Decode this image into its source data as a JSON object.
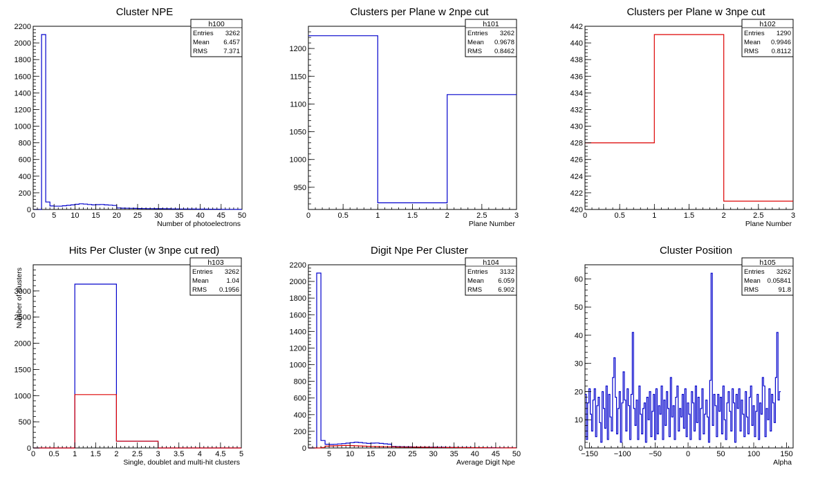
{
  "chart_data": [
    {
      "id": "h100",
      "type": "bar",
      "title": "Cluster NPE",
      "xlabel": "Number of photoelectrons",
      "ylabel": "",
      "xlim": [
        0,
        50
      ],
      "ylim": [
        0,
        2200
      ],
      "xticks": [
        0,
        5,
        10,
        15,
        20,
        25,
        30,
        35,
        40,
        45,
        50
      ],
      "xtick_labels": [
        "0",
        "5",
        "10",
        "15",
        "20",
        "25",
        "30",
        "35",
        "40",
        "45",
        "50"
      ],
      "yticks": [
        0,
        200,
        400,
        600,
        800,
        1000,
        1200,
        1400,
        1600,
        1800,
        2000,
        2200
      ],
      "ytick_labels": [
        "0",
        "200",
        "400",
        "600",
        "800",
        "1000",
        "1200",
        "1400",
        "1600",
        "1800",
        "2000",
        "2200"
      ],
      "stats": {
        "name": "h100",
        "Entries": "3262",
        "Mean": "6.457",
        "RMS": "7.371"
      },
      "series": [
        {
          "color": "#0000cc",
          "bin_edges_start": 0,
          "bin_width": 1,
          "values": [
            0,
            0,
            2100,
            90,
            42,
            40,
            40,
            45,
            50,
            55,
            62,
            68,
            65,
            60,
            55,
            58,
            60,
            55,
            52,
            48,
            18,
            16,
            15,
            14,
            13,
            12,
            11,
            10,
            10,
            9,
            9,
            8,
            8,
            7,
            7,
            6,
            6,
            5,
            5,
            4,
            4,
            4,
            3,
            3,
            3,
            2,
            2,
            2,
            1,
            1
          ]
        }
      ]
    },
    {
      "id": "h101",
      "type": "bar",
      "title": "Clusters per Plane w 2npe cut",
      "xlabel": "Plane Number",
      "ylabel": "",
      "xlim": [
        0,
        3
      ],
      "ylim": [
        910,
        1240
      ],
      "xticks": [
        0,
        0.5,
        1,
        1.5,
        2,
        2.5,
        3
      ],
      "xtick_labels": [
        "0",
        "0.5",
        "1",
        "1.5",
        "2",
        "2.5",
        "3"
      ],
      "yticks": [
        950,
        1000,
        1050,
        1100,
        1150,
        1200
      ],
      "ytick_labels": [
        "950",
        "1000",
        "1050",
        "1100",
        "1150",
        "1200"
      ],
      "stats": {
        "name": "h101",
        "Entries": "3262",
        "Mean": "0.9678",
        "RMS": "0.8462"
      },
      "series": [
        {
          "color": "#0000cc",
          "bin_edges_start": 0,
          "bin_width": 1,
          "values": [
            1223,
            922,
            1117
          ]
        }
      ]
    },
    {
      "id": "h102",
      "type": "bar",
      "title": "Clusters per Plane w 3npe cut",
      "xlabel": "Plane Number",
      "ylabel": "",
      "xlim": [
        0,
        3
      ],
      "ylim": [
        420,
        442
      ],
      "xticks": [
        0,
        0.5,
        1,
        1.5,
        2,
        2.5,
        3
      ],
      "xtick_labels": [
        "0",
        "0.5",
        "1",
        "1.5",
        "2",
        "2.5",
        "3"
      ],
      "yticks": [
        420,
        422,
        424,
        426,
        428,
        430,
        432,
        434,
        436,
        438,
        440,
        442
      ],
      "ytick_labels": [
        "420",
        "422",
        "424",
        "426",
        "428",
        "430",
        "432",
        "434",
        "436",
        "438",
        "440",
        "442"
      ],
      "stats": {
        "name": "h102",
        "Entries": "1290",
        "Mean": "0.9946",
        "RMS": "0.8112"
      },
      "series": [
        {
          "color": "#dd0000",
          "bin_edges_start": 0,
          "bin_width": 1,
          "values": [
            428,
            441,
            421
          ]
        }
      ]
    },
    {
      "id": "h103",
      "type": "bar",
      "title": "Hits Per Cluster (w 3npe cut red)",
      "xlabel": "Single, doublet and multi-hit clusters",
      "ylabel": "Number of clusters",
      "xlim": [
        0,
        5
      ],
      "ylim": [
        0,
        3500
      ],
      "xticks": [
        0,
        0.5,
        1,
        1.5,
        2,
        2.5,
        3,
        3.5,
        4,
        4.5,
        5
      ],
      "xtick_labels": [
        "0",
        "0.5",
        "1",
        "1.5",
        "2",
        "2.5",
        "3",
        "3.5",
        "4",
        "4.5",
        "5"
      ],
      "yticks": [
        0,
        500,
        1000,
        1500,
        2000,
        2500,
        3000
      ],
      "ytick_labels": [
        "0",
        "500",
        "1000",
        "1500",
        "2000",
        "2500",
        "3000"
      ],
      "stats": {
        "name": "h103",
        "Entries": "3262",
        "Mean": "1.04",
        "RMS": "0.1956"
      },
      "series": [
        {
          "color": "#0000cc",
          "bin_edges_start": 0,
          "bin_width": 1,
          "values": [
            0,
            3130,
            130,
            0,
            0
          ]
        },
        {
          "color": "#dd0000",
          "bin_edges_start": 0,
          "bin_width": 1,
          "values": [
            0,
            1020,
            130,
            0,
            0
          ]
        }
      ]
    },
    {
      "id": "h104",
      "type": "bar",
      "title": "Digit Npe Per Cluster",
      "xlabel": "Average Digit Npe",
      "ylabel": "",
      "xlim": [
        0,
        50
      ],
      "ylim": [
        0,
        2200
      ],
      "xticks": [
        5,
        10,
        15,
        20,
        25,
        30,
        35,
        40,
        45,
        50
      ],
      "xtick_labels": [
        "5",
        "10",
        "15",
        "20",
        "25",
        "30",
        "35",
        "40",
        "45",
        "50"
      ],
      "yticks": [
        0,
        200,
        400,
        600,
        800,
        1000,
        1200,
        1400,
        1600,
        1800,
        2000,
        2200
      ],
      "ytick_labels": [
        "0",
        "200",
        "400",
        "600",
        "800",
        "1000",
        "1200",
        "1400",
        "1600",
        "1800",
        "2000",
        "2200"
      ],
      "stats": {
        "name": "h104",
        "Entries": "3132",
        "Mean": "6.059",
        "RMS": "6.902"
      },
      "series": [
        {
          "color": "#0000cc",
          "bin_edges_start": 0,
          "bin_width": 1,
          "values": [
            0,
            0,
            2100,
            90,
            45,
            42,
            44,
            48,
            52,
            58,
            64,
            70,
            66,
            60,
            55,
            58,
            60,
            55,
            50,
            46,
            18,
            16,
            15,
            14,
            13,
            12,
            11,
            10,
            10,
            9,
            9,
            8,
            8,
            7,
            7,
            6,
            6,
            5,
            5,
            4,
            4,
            4,
            3,
            3,
            3,
            2,
            2,
            2,
            1,
            1
          ]
        },
        {
          "color": "#dd0000",
          "bin_edges_start": 0,
          "bin_width": 1,
          "values": [
            0,
            0,
            0,
            5,
            22,
            24,
            26,
            28,
            30,
            30,
            28,
            26,
            24,
            22,
            20,
            18,
            17,
            16,
            15,
            14,
            13,
            12,
            11,
            10,
            10,
            9,
            9,
            8,
            8,
            7,
            7,
            6,
            6,
            5,
            5,
            5,
            4,
            4,
            4,
            3,
            3,
            3,
            3,
            2,
            2,
            2,
            2,
            1,
            1,
            1
          ]
        }
      ]
    },
    {
      "id": "h105",
      "type": "bar",
      "title": "Cluster Position",
      "xlabel": "Alpha",
      "ylabel": "",
      "xlim": [
        -157,
        160
      ],
      "ylim": [
        0,
        65
      ],
      "xticks": [
        -150,
        -100,
        -50,
        0,
        50,
        100,
        150
      ],
      "xtick_labels": [
        "−150",
        "−100",
        "−50",
        "0",
        "50",
        "100",
        "150"
      ],
      "yticks": [
        0,
        10,
        20,
        30,
        40,
        50,
        60
      ],
      "ytick_labels": [
        "0",
        "10",
        "20",
        "30",
        "40",
        "50",
        "60"
      ],
      "stats": {
        "name": "h105",
        "Entries": "3262",
        "Mean": "0.05841",
        "RMS": "91.8"
      },
      "series": [
        {
          "color": "#0000cc",
          "bin_edges_start": -157,
          "bin_width": 2,
          "values": [
            19,
            3,
            16,
            21,
            12,
            6,
            17,
            21,
            4,
            15,
            18,
            9,
            2,
            20,
            14,
            7,
            22,
            3,
            19,
            11,
            6,
            25,
            32,
            18,
            5,
            14,
            20,
            2,
            16,
            27,
            17,
            6,
            21,
            15,
            3,
            19,
            41,
            14,
            8,
            17,
            3,
            22,
            12,
            5,
            14,
            16,
            2,
            18,
            10,
            20,
            4,
            13,
            19,
            3,
            21,
            5,
            15,
            12,
            22,
            3,
            17,
            8,
            20,
            14,
            4,
            25,
            11,
            15,
            3,
            18,
            22,
            6,
            14,
            11,
            19,
            7,
            21,
            4,
            16,
            12,
            3,
            20,
            16,
            6,
            22,
            9,
            18,
            3,
            14,
            21,
            5,
            12,
            17,
            11,
            2,
            24,
            62,
            8,
            19,
            15,
            4,
            19,
            13,
            18,
            5,
            22,
            10,
            3,
            16,
            20,
            13,
            6,
            21,
            16,
            2,
            19,
            14,
            21,
            6,
            17,
            12,
            4,
            20,
            11,
            5,
            18,
            22,
            8,
            15,
            4,
            13,
            19,
            3,
            16,
            12,
            25,
            22,
            4,
            14,
            10,
            21,
            6,
            19,
            16,
            9,
            25,
            41,
            17,
            20
          ]
        }
      ]
    }
  ]
}
